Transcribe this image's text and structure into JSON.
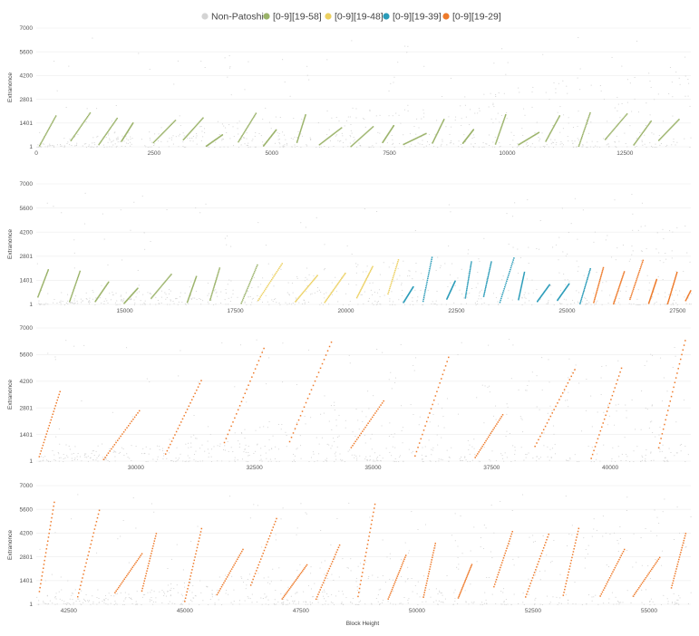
{
  "chart_data": {
    "type": "scatter",
    "legend": {
      "placement": "top-center",
      "entries": [
        {
          "name": "Non-Patoshi",
          "color": "#d4d4d4"
        },
        {
          "name": "[0-9][19-58]",
          "color": "#9bb36a"
        },
        {
          "name": "[0-9][19-48]",
          "color": "#ecd060"
        },
        {
          "name": "[0-9][19-39]",
          "color": "#2b9cb9"
        },
        {
          "name": "[0-9][19-29]",
          "color": "#ee7a2a"
        }
      ]
    },
    "xlabel": "Block Height",
    "ylabel": "Extranonce",
    "y_ticks": [
      "1",
      "1401",
      "2801",
      "4200",
      "5600",
      "7000"
    ],
    "y_tick_values": [
      1,
      1401,
      2801,
      4200,
      5600,
      7000
    ],
    "ylim": [
      1,
      7000
    ],
    "panels": [
      {
        "name": "blocks-0-to-14000",
        "xlim": [
          0,
          13900
        ],
        "x_ticks": [
          "0",
          "2500",
          "5000",
          "7500",
          "10000",
          "12500"
        ],
        "x_tick_values": [
          0,
          2500,
          5000,
          7500,
          10000,
          12500
        ],
        "segments": [
          {
            "series": "[0-9][19-58]",
            "x_start": 0,
            "x_end": 13900,
            "y_min": 1,
            "y_max": 2000,
            "spacing": 600
          }
        ]
      },
      {
        "name": "blocks-14000-to-28000",
        "xlim": [
          13000,
          27800
        ],
        "x_ticks": [
          "15000",
          "17500",
          "20000",
          "22500",
          "25000",
          "27500"
        ],
        "x_tick_values": [
          15000,
          17500,
          20000,
          22500,
          25000,
          27500
        ],
        "segments": [
          {
            "series": "[0-9][19-58]",
            "x_start": 13000,
            "x_end": 18000,
            "y_min": 1,
            "y_max": 2600,
            "spacing": 650
          },
          {
            "series": "[0-9][19-48]",
            "x_start": 18000,
            "x_end": 21200,
            "y_min": 1,
            "y_max": 3300,
            "spacing": 700
          },
          {
            "series": "[0-9][19-39]",
            "x_start": 21300,
            "x_end": 25600,
            "y_min": 1,
            "y_max": 2900,
            "spacing": 430
          },
          {
            "series": "[0-9][19-29]",
            "x_start": 25600,
            "x_end": 27800,
            "y_min": 1,
            "y_max": 2900,
            "spacing": 400
          }
        ]
      },
      {
        "name": "blocks-28000-to-42000",
        "xlim": [
          27900,
          41700
        ],
        "x_ticks": [
          "30000",
          "32500",
          "35000",
          "37500",
          "40000"
        ],
        "x_tick_values": [
          30000,
          32500,
          35000,
          37500,
          40000
        ],
        "segments": [
          {
            "series": "[0-9][19-29]",
            "x_start": 27900,
            "x_end": 41700,
            "y_min": 1,
            "y_max": 6600,
            "spacing": 1300
          }
        ]
      },
      {
        "name": "blocks-42000-to-56000",
        "xlim": [
          41800,
          55900
        ],
        "x_ticks": [
          "42500",
          "45000",
          "47500",
          "50000",
          "52500",
          "55000"
        ],
        "x_tick_values": [
          42500,
          45000,
          47500,
          50000,
          52500,
          55000
        ],
        "segments": [
          {
            "series": "[0-9][19-29]",
            "x_start": 41800,
            "x_end": 55900,
            "y_min": 1,
            "y_max": 6500,
            "spacing": 750
          }
        ]
      }
    ]
  }
}
